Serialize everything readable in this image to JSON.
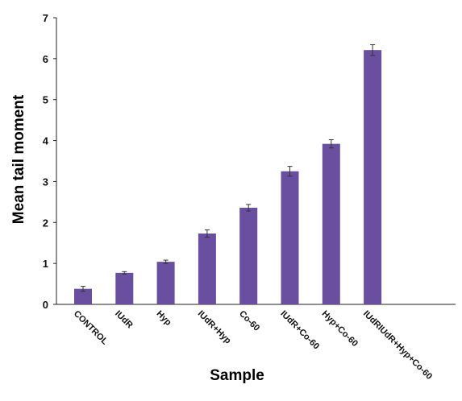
{
  "chart_data": {
    "type": "bar",
    "xlabel": "Sample",
    "ylabel": "Mean tail moment",
    "ylim": [
      0,
      7
    ],
    "yticks": [
      0,
      1,
      2,
      3,
      4,
      5,
      6,
      7
    ],
    "grid": false,
    "categories": [
      "CONTROL",
      "IUdR",
      "Hyp",
      "IUdR+Hyp",
      "Co-60",
      "IUdR+Co-60",
      "Hyp+Co-60",
      "IUdRIUdR+Hyp+Co-60"
    ],
    "values": [
      0.38,
      0.77,
      1.04,
      1.73,
      2.36,
      3.25,
      3.92,
      6.21
    ],
    "errors": [
      0.06,
      0.03,
      0.04,
      0.09,
      0.08,
      0.12,
      0.1,
      0.13
    ],
    "bar_color": "#6a4fa0"
  }
}
